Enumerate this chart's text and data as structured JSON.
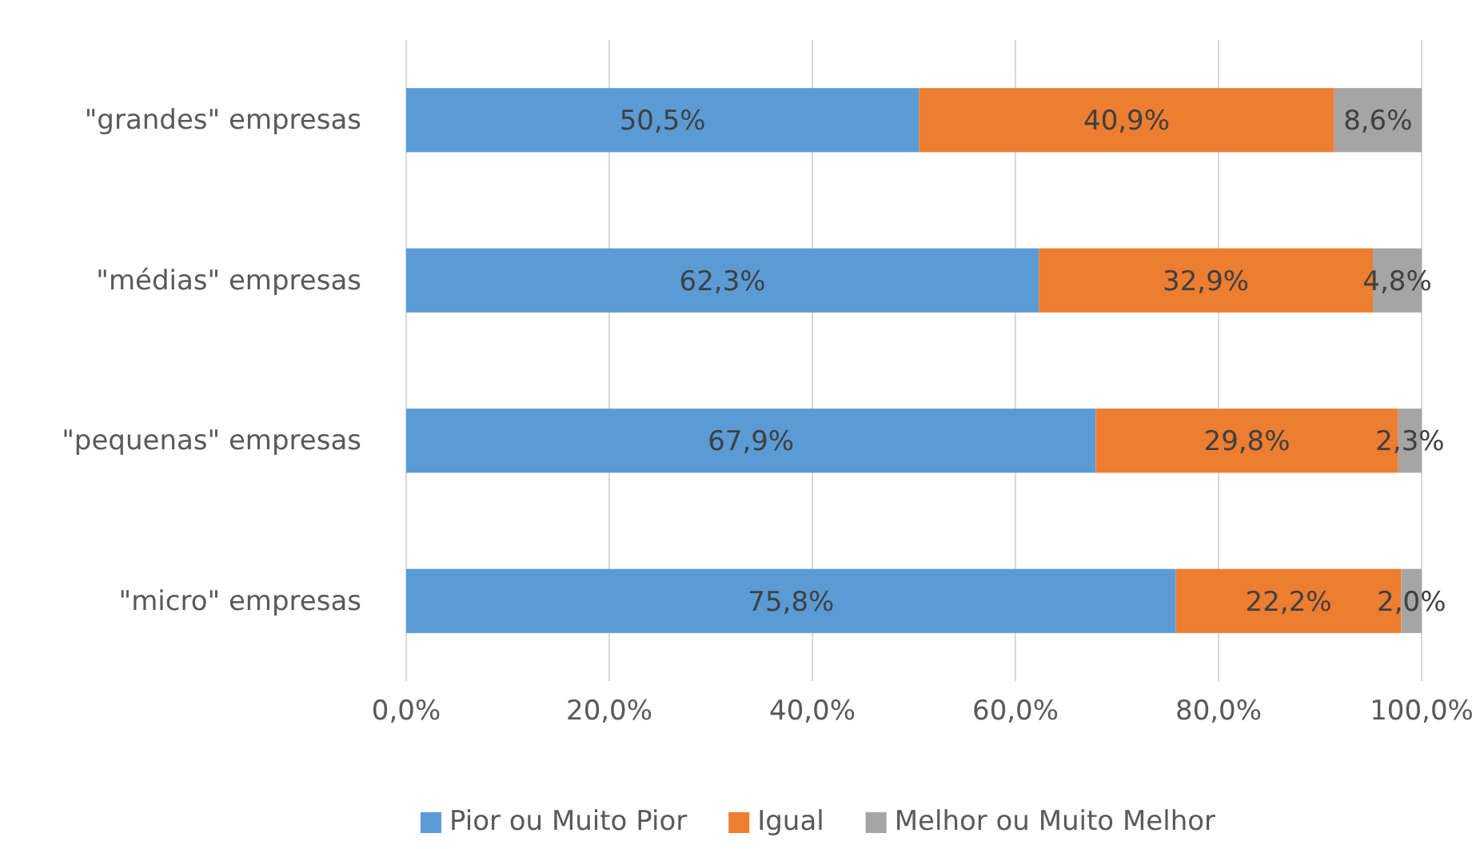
{
  "chart_data": {
    "type": "bar",
    "orientation": "horizontal",
    "stacked": true,
    "categories": [
      "\"grandes\" empresas",
      "\"médias\" empresas",
      "\"pequenas\" empresas",
      "\"micro\" empresas"
    ],
    "series": [
      {
        "name": "Pior ou Muito Pior",
        "color": "#5b9bd5",
        "values": [
          50.5,
          62.3,
          67.9,
          75.8
        ],
        "value_labels": [
          "50,5%",
          "62,3%",
          "67,9%",
          "75,8%"
        ]
      },
      {
        "name": "Igual",
        "color": "#ed7d31",
        "values": [
          40.9,
          32.9,
          29.8,
          22.2
        ],
        "value_labels": [
          "40,9%",
          "32,9%",
          "29,8%",
          "22,2%"
        ]
      },
      {
        "name": "Melhor ou Muito Melhor",
        "color": "#a5a5a5",
        "values": [
          8.6,
          4.8,
          2.3,
          2.0
        ],
        "value_labels": [
          "8,6%",
          "4,8%",
          "2,3%",
          "2,0%"
        ]
      }
    ],
    "xlim": [
      0,
      100
    ],
    "xticks": [
      {
        "value": 0,
        "label": "0,0%"
      },
      {
        "value": 20,
        "label": "20,0%"
      },
      {
        "value": 40,
        "label": "40,0%"
      },
      {
        "value": 60,
        "label": "60,0%"
      },
      {
        "value": 80,
        "label": "80,0%"
      },
      {
        "value": 100,
        "label": "100,0%"
      }
    ],
    "grid": "x",
    "legend": "bottom"
  }
}
